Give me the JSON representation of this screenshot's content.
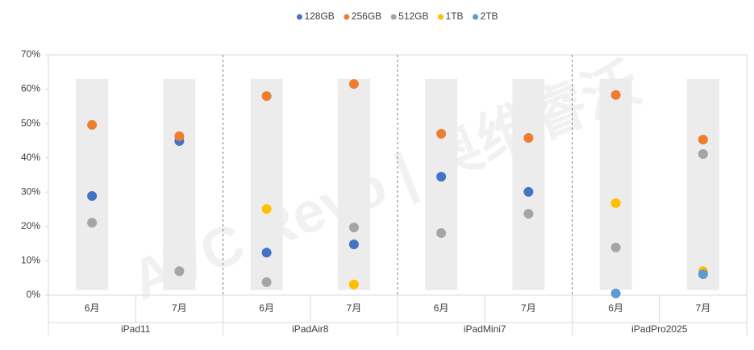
{
  "chart_data": {
    "type": "dot",
    "watermark": "AVC Revo | 奥维睿沃",
    "categories": [
      "6月",
      "7月",
      "6月",
      "7月",
      "6月",
      "7月",
      "6月",
      "7月"
    ],
    "groups": [
      "iPad11",
      "iPadAir8",
      "iPadMini7",
      "iPadPro2025"
    ],
    "band_range": [
      1.5,
      63
    ],
    "series": [
      {
        "name": "128GB",
        "color": "#4472c4",
        "values": [
          28.9,
          44.9,
          12.4,
          14.8,
          34.5,
          30.1,
          null,
          null
        ]
      },
      {
        "name": "256GB",
        "color": "#ed7d31",
        "values": [
          49.6,
          46.3,
          58.0,
          61.5,
          47.0,
          45.8,
          58.3,
          45.3
        ]
      },
      {
        "name": "512GB",
        "color": "#a5a5a5",
        "values": [
          21.1,
          7.0,
          3.8,
          19.7,
          18.1,
          23.7,
          13.9,
          41.1
        ]
      },
      {
        "name": "1TB",
        "color": "#ffc000",
        "values": [
          null,
          null,
          25.1,
          3.1,
          null,
          null,
          26.8,
          7.0
        ]
      },
      {
        "name": "2TB",
        "color": "#5b9bd5",
        "values": [
          null,
          null,
          null,
          null,
          null,
          null,
          0.5,
          6.1
        ]
      }
    ],
    "ylim": [
      0,
      70
    ],
    "yticks": [
      {
        "value": 0,
        "label": "0%"
      },
      {
        "value": 10,
        "label": "10%"
      },
      {
        "value": 20,
        "label": "20%"
      },
      {
        "value": 30,
        "label": "30%"
      },
      {
        "value": 40,
        "label": "40%"
      },
      {
        "value": 50,
        "label": "50%"
      },
      {
        "value": 60,
        "label": "60%"
      },
      {
        "value": 70,
        "label": "70%"
      }
    ],
    "legend": "top"
  }
}
